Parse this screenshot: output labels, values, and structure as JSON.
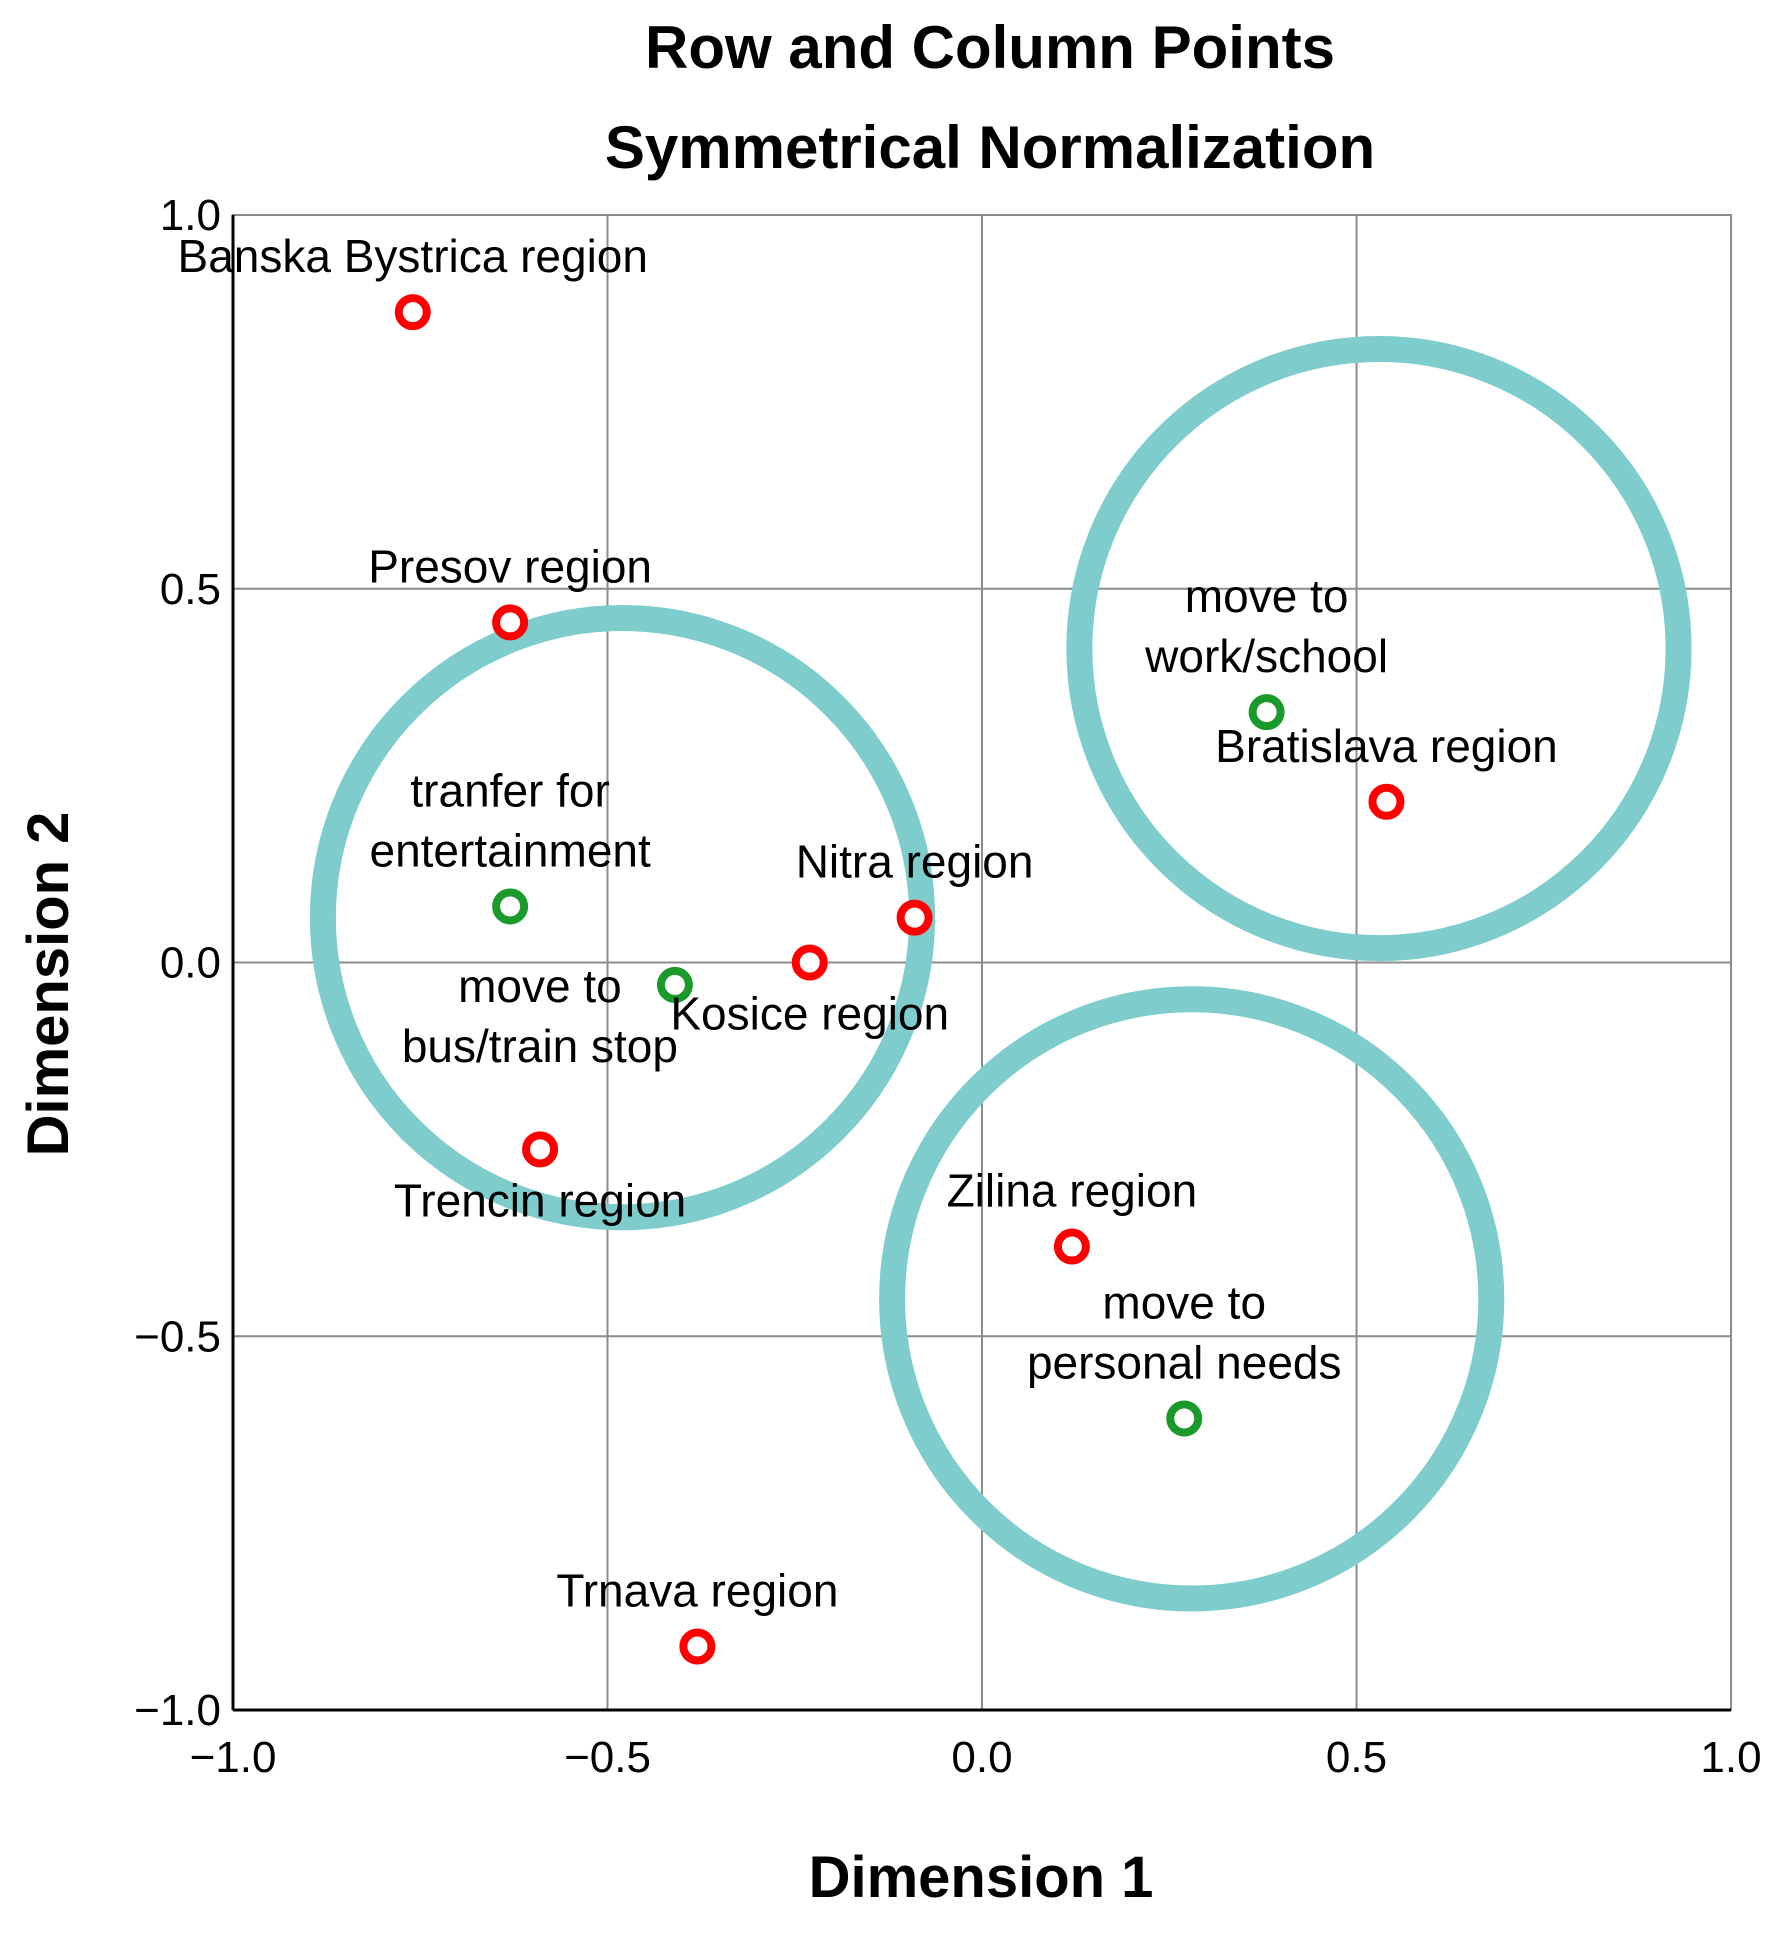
{
  "chart_data": {
    "type": "scatter",
    "title": [
      "Row and Column Points",
      "Symmetrical Normalization"
    ],
    "xlabel": "Dimension 1",
    "ylabel": "Dimension 2",
    "xlim": [
      -1.0,
      1.0
    ],
    "ylim": [
      -1.0,
      1.0
    ],
    "grid": true,
    "xticks": [
      {
        "value": -1.0,
        "label": "−1.0"
      },
      {
        "value": -0.5,
        "label": "−0.5"
      },
      {
        "value": 0.0,
        "label": "0.0"
      },
      {
        "value": 0.5,
        "label": "0.5"
      },
      {
        "value": 1.0,
        "label": "1.0"
      }
    ],
    "yticks": [
      {
        "value": -1.0,
        "label": "−1.0"
      },
      {
        "value": -0.5,
        "label": "−0.5"
      },
      {
        "value": 0.0,
        "label": "0.0"
      },
      {
        "value": 0.5,
        "label": "0.5"
      },
      {
        "value": 1.0,
        "label": "1.0"
      }
    ],
    "colors": {
      "row": "#ff0000",
      "column": "#1a9a2a",
      "cluster": "#7ecccc"
    },
    "series": [
      {
        "name": "region",
        "color": "#ff0000",
        "points": [
          {
            "label": [
              "Banska Bystrica region"
            ],
            "x": -0.76,
            "y": 0.87,
            "label_pos": "above"
          },
          {
            "label": [
              "Presov region"
            ],
            "x": -0.63,
            "y": 0.455,
            "label_pos": "above"
          },
          {
            "label": [
              "Bratislava region"
            ],
            "x": 0.54,
            "y": 0.215,
            "label_pos": "above"
          },
          {
            "label": [
              "Nitra region"
            ],
            "x": -0.09,
            "y": 0.06,
            "label_pos": "above"
          },
          {
            "label": [
              "Kosice region"
            ],
            "x": -0.23,
            "y": 0.0,
            "label_pos": "below"
          },
          {
            "label": [
              "Trencin region"
            ],
            "x": -0.59,
            "y": -0.25,
            "label_pos": "below"
          },
          {
            "label": [
              "Zilina region"
            ],
            "x": 0.12,
            "y": -0.38,
            "label_pos": "above"
          },
          {
            "label": [
              "Trnava region"
            ],
            "x": -0.38,
            "y": -0.915,
            "label_pos": "above"
          }
        ]
      },
      {
        "name": "purpose",
        "color": "#1a9a2a",
        "points": [
          {
            "label": [
              "move to",
              "work/school"
            ],
            "x": 0.38,
            "y": 0.335,
            "label_pos": "above"
          },
          {
            "label": [
              "tranfer for",
              "entertainment"
            ],
            "x": -0.63,
            "y": 0.075,
            "label_pos": "above"
          },
          {
            "label": [
              "move to",
              "bus/train stop"
            ],
            "x": -0.41,
            "y": -0.03,
            "label_pos": "left-below"
          },
          {
            "label": [
              "move to",
              "personal needs"
            ],
            "x": 0.27,
            "y": -0.61,
            "label_pos": "above"
          }
        ]
      }
    ],
    "clusters": [
      {
        "center": [
          -0.48,
          0.06
        ],
        "radius": 0.4
      },
      {
        "center": [
          0.53,
          0.42
        ],
        "radius": 0.4
      },
      {
        "center": [
          0.28,
          -0.45
        ],
        "radius": 0.4
      }
    ]
  }
}
